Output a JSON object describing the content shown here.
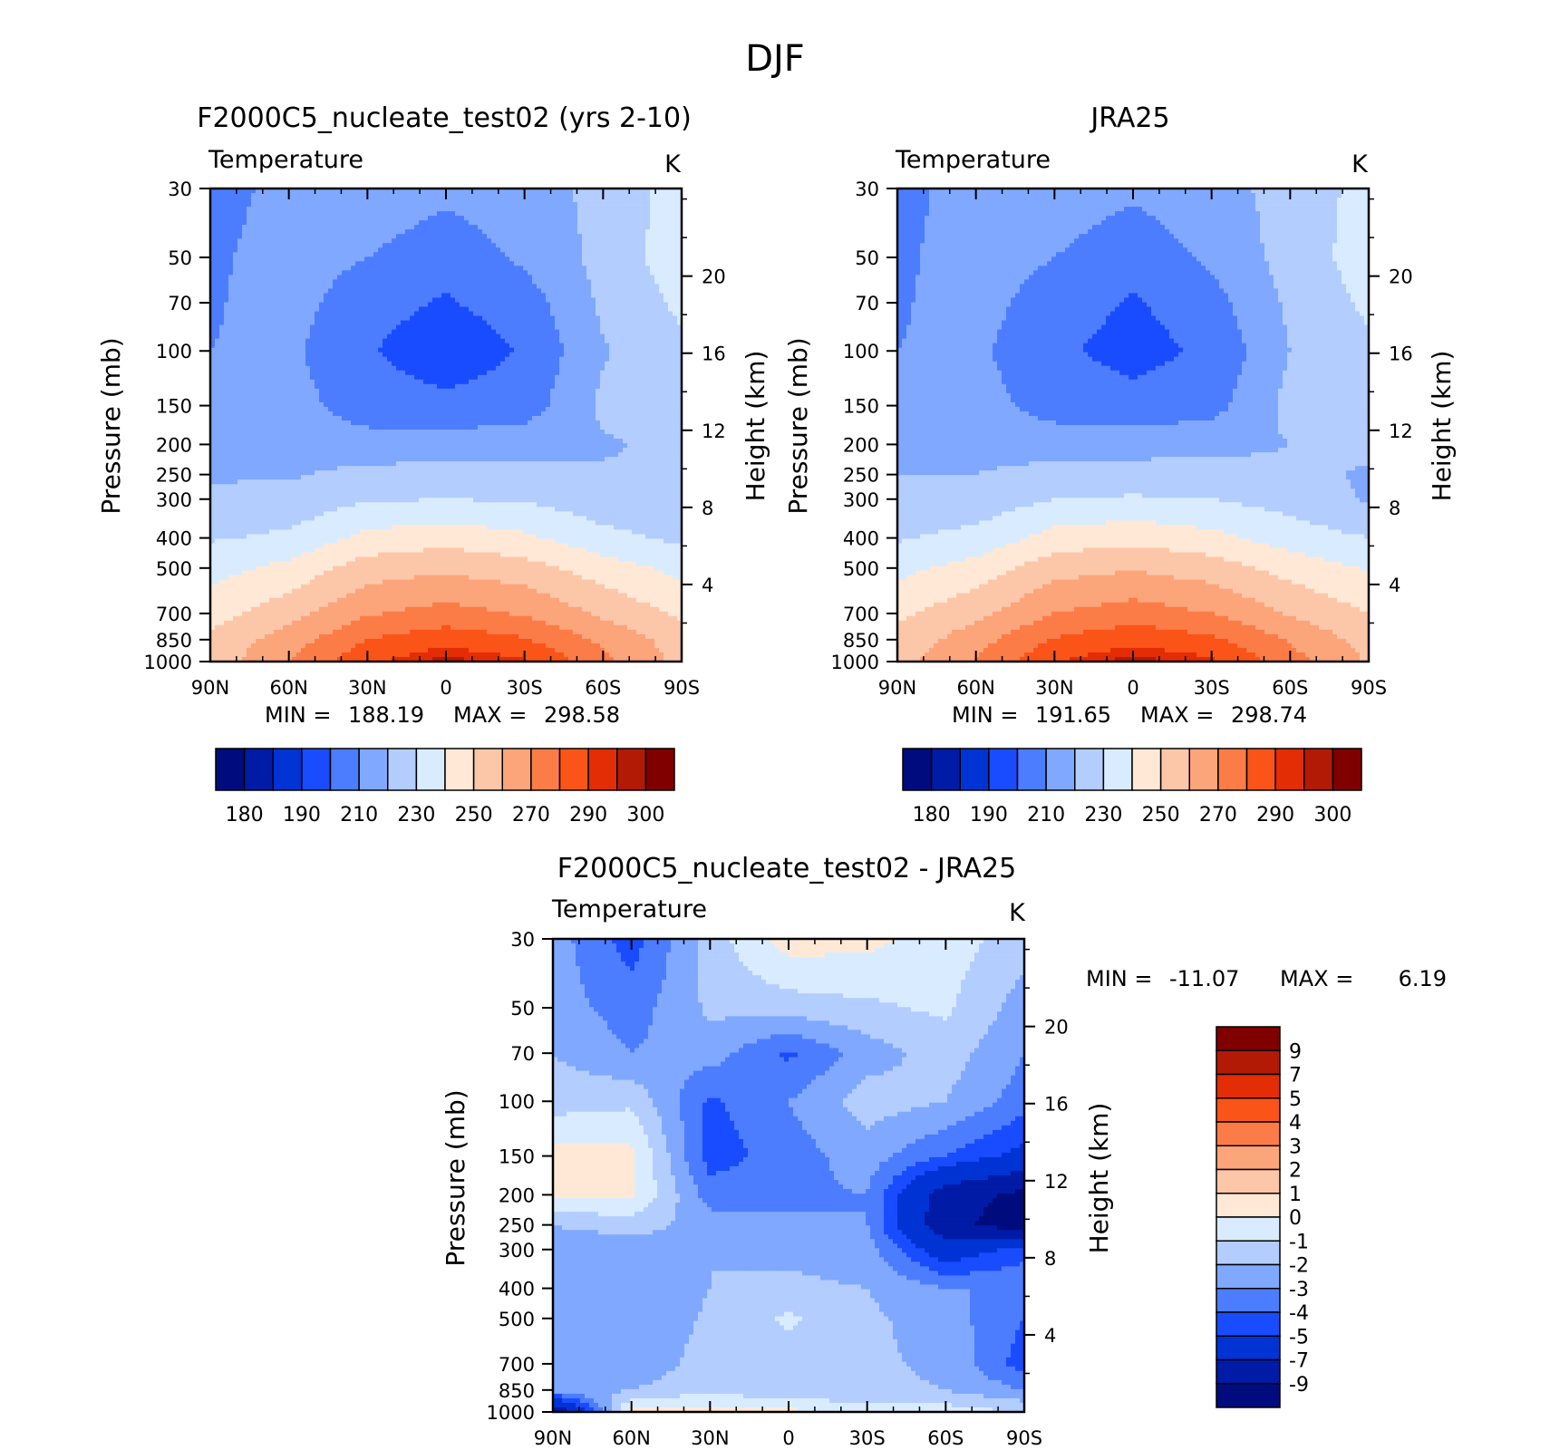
{
  "figure": {
    "title": "DJF"
  },
  "colors": {
    "abs": [
      "#000c7d",
      "#001ba6",
      "#0033d4",
      "#1a4cff",
      "#4d7dff",
      "#80a8ff",
      "#b3cdff",
      "#d9ecff",
      "#ffe8d6",
      "#fcc7a8",
      "#fca47a",
      "#fc7c47",
      "#fa5419",
      "#e32d05",
      "#b31a05",
      "#800000"
    ],
    "diff": [
      "#000c7d",
      "#001ba6",
      "#0033d4",
      "#1a4cff",
      "#4d7dff",
      "#80a8ff",
      "#b3cdff",
      "#d9ecff",
      "#ffe8d6",
      "#fcc7a8",
      "#fca47a",
      "#fc7c47",
      "#fa5419",
      "#e32d05",
      "#b31a05",
      "#800000"
    ]
  },
  "chart_data": [
    {
      "id": "p1",
      "type": "heatmap",
      "title": "F2000C5_nucleate_test02 (yrs 2-10)",
      "left_string": "Temperature",
      "right_string": "K",
      "ylabel": "Pressure (mb)",
      "y2label": "Height (km)",
      "x_ticks": [
        "90N",
        "60N",
        "30N",
        "0",
        "30S",
        "60S",
        "90S"
      ],
      "y_ticks": [
        "30",
        "50",
        "70",
        "100",
        "150",
        "200",
        "250",
        "300",
        "400",
        "500",
        "700",
        "850",
        "1000"
      ],
      "y2_ticks": [
        "20",
        "16",
        "12",
        "8",
        "4"
      ],
      "stats": {
        "min_label": "MIN =",
        "min": "188.19",
        "max_label": "MAX =",
        "max": "298.58"
      },
      "colorbar": {
        "orientation": "horizontal",
        "labels": [
          "180",
          "190",
          "210",
          "230",
          "250",
          "270",
          "290",
          "300"
        ]
      },
      "levels": [
        180,
        185,
        190,
        200,
        210,
        220,
        230,
        240,
        250,
        260,
        270,
        280,
        290,
        295,
        300
      ],
      "data": {
        "x": [
          "90N",
          "60N",
          "30N",
          "0",
          "30S",
          "60S",
          "90S"
        ],
        "y": [
          "30",
          "50",
          "70",
          "100",
          "150",
          "200",
          "250",
          "300",
          "400",
          "500",
          "700",
          "850",
          "1000"
        ],
        "values": [
          [
            205,
            214,
            218,
            213,
            217,
            222,
            235
          ],
          [
            208,
            215,
            210,
            203,
            212,
            223,
            236
          ],
          [
            209,
            214,
            204,
            199,
            205,
            222,
            232
          ],
          [
            210,
            212,
            201,
            193,
            201,
            219,
            228
          ],
          [
            212,
            214,
            205,
            203,
            205,
            222,
            226
          ],
          [
            216,
            215,
            214,
            214,
            216,
            219,
            222
          ],
          [
            219,
            219,
            223,
            224,
            223,
            221,
            220
          ],
          [
            222,
            223,
            229,
            230,
            229,
            224,
            221
          ],
          [
            229,
            232,
            243,
            246,
            242,
            233,
            228
          ],
          [
            236,
            243,
            255,
            258,
            254,
            245,
            237
          ],
          [
            246,
            256,
            269,
            274,
            269,
            258,
            248
          ],
          [
            252,
            265,
            280,
            286,
            281,
            268,
            255
          ],
          [
            254,
            270,
            288,
            298,
            291,
            273,
            257
          ]
        ]
      }
    },
    {
      "id": "p2",
      "type": "heatmap",
      "title": "JRA25",
      "left_string": "Temperature",
      "right_string": "K",
      "ylabel": "Pressure (mb)",
      "y2label": "Height (km)",
      "x_ticks": [
        "90N",
        "60N",
        "30N",
        "0",
        "30S",
        "60S",
        "90S"
      ],
      "y_ticks": [
        "30",
        "50",
        "70",
        "100",
        "150",
        "200",
        "250",
        "300",
        "400",
        "500",
        "700",
        "850",
        "1000"
      ],
      "y2_ticks": [
        "20",
        "16",
        "12",
        "8",
        "4"
      ],
      "stats": {
        "min_label": "MIN =",
        "min": "191.65",
        "max_label": "MAX =",
        "max": "298.74"
      },
      "colorbar": {
        "orientation": "horizontal",
        "labels": [
          "180",
          "190",
          "210",
          "230",
          "250",
          "270",
          "290",
          "300"
        ]
      },
      "levels": [
        180,
        185,
        190,
        200,
        210,
        220,
        230,
        240,
        250,
        260,
        270,
        280,
        290,
        295,
        300
      ],
      "data": {
        "x": [
          "90N",
          "60N",
          "30N",
          "0",
          "30S",
          "60S",
          "90S"
        ],
        "y": [
          "30",
          "50",
          "70",
          "100",
          "150",
          "200",
          "250",
          "300",
          "400",
          "500",
          "700",
          "850",
          "1000"
        ],
        "values": [
          [
            207,
            214,
            217,
            212,
            217,
            223,
            234
          ],
          [
            208,
            215,
            210,
            203,
            212,
            224,
            235
          ],
          [
            209,
            214,
            205,
            199,
            206,
            222,
            232
          ],
          [
            210,
            212,
            202,
            196,
            202,
            220,
            228
          ],
          [
            212,
            214,
            206,
            204,
            206,
            223,
            225
          ],
          [
            216,
            216,
            215,
            215,
            217,
            220,
            222
          ],
          [
            220,
            220,
            224,
            225,
            224,
            222,
            219
          ],
          [
            223,
            224,
            230,
            231,
            230,
            226,
            219
          ],
          [
            229,
            233,
            244,
            247,
            243,
            235,
            230
          ],
          [
            237,
            244,
            256,
            259,
            255,
            246,
            239
          ],
          [
            248,
            257,
            270,
            275,
            270,
            259,
            250
          ],
          [
            253,
            266,
            281,
            287,
            282,
            269,
            256
          ],
          [
            256,
            271,
            289,
            298,
            292,
            274,
            259
          ]
        ]
      }
    },
    {
      "id": "p3",
      "type": "heatmap",
      "title": "F2000C5_nucleate_test02 - JRA25",
      "left_string": "Temperature",
      "right_string": "K",
      "ylabel": "Pressure (mb)",
      "y2label": "Height (km)",
      "x_ticks": [
        "90N",
        "60N",
        "30N",
        "0",
        "30S",
        "60S",
        "90S"
      ],
      "y_ticks": [
        "30",
        "50",
        "70",
        "100",
        "150",
        "200",
        "250",
        "300",
        "400",
        "500",
        "700",
        "850",
        "1000"
      ],
      "y2_ticks": [
        "20",
        "16",
        "12",
        "8",
        "4"
      ],
      "stats": {
        "min_label": "MIN =",
        "min": "-11.07",
        "max_label": "MAX =",
        "max": "6.19"
      },
      "colorbar": {
        "orientation": "vertical",
        "labels": [
          "9",
          "7",
          "5",
          "4",
          "3",
          "2",
          "1",
          "0",
          "-1",
          "-2",
          "-3",
          "-4",
          "-5",
          "-7",
          "-9"
        ]
      },
      "levels": [
        -9,
        -7,
        -5,
        -4,
        -3,
        -2,
        -1,
        0,
        1,
        2,
        3,
        4,
        5,
        7,
        9
      ],
      "data": {
        "x": [
          "90N",
          "60N",
          "30N",
          "0",
          "30S",
          "60S",
          "90S"
        ],
        "y": [
          "30",
          "50",
          "70",
          "100",
          "150",
          "200",
          "250",
          "300",
          "400",
          "500",
          "700",
          "850",
          "1000"
        ],
        "values": [
          [
            -2.5,
            -4.5,
            -1.5,
            0.5,
            0.3,
            -0.5,
            -1.5
          ],
          [
            -2.5,
            -3.5,
            -1.8,
            -1.5,
            -1.2,
            -0.8,
            -2.5
          ],
          [
            -2,
            -3,
            -2.5,
            -4.2,
            -2.5,
            -1.5,
            -3
          ],
          [
            -1.5,
            -1.2,
            -4.2,
            -3,
            -1.5,
            -2,
            -3.5
          ],
          [
            0.5,
            0.3,
            -4.5,
            -3.5,
            -2.5,
            -4,
            -5.5
          ],
          [
            0.3,
            0.2,
            -3.5,
            -3.2,
            -3,
            -8,
            -9.5
          ],
          [
            -2,
            -1.5,
            -2.5,
            -2.8,
            -3,
            -8.5,
            -10
          ],
          [
            -2.5,
            -2.8,
            -2,
            -2.2,
            -2.5,
            -6,
            -4.5
          ],
          [
            -2.8,
            -3,
            -2,
            -1.8,
            -2,
            -3,
            -3
          ],
          [
            -3,
            -3,
            -1.8,
            -0.8,
            -1.8,
            -2.5,
            -4
          ],
          [
            -3,
            -2.8,
            -1.5,
            -1.5,
            -1.8,
            -2.2,
            -4.5
          ],
          [
            -2.5,
            -2,
            -1.2,
            -1.8,
            -1.8,
            -2,
            -3
          ],
          [
            -9,
            0.5,
            0.2,
            0.3,
            -0.5,
            -0.5,
            -1
          ]
        ]
      }
    }
  ]
}
